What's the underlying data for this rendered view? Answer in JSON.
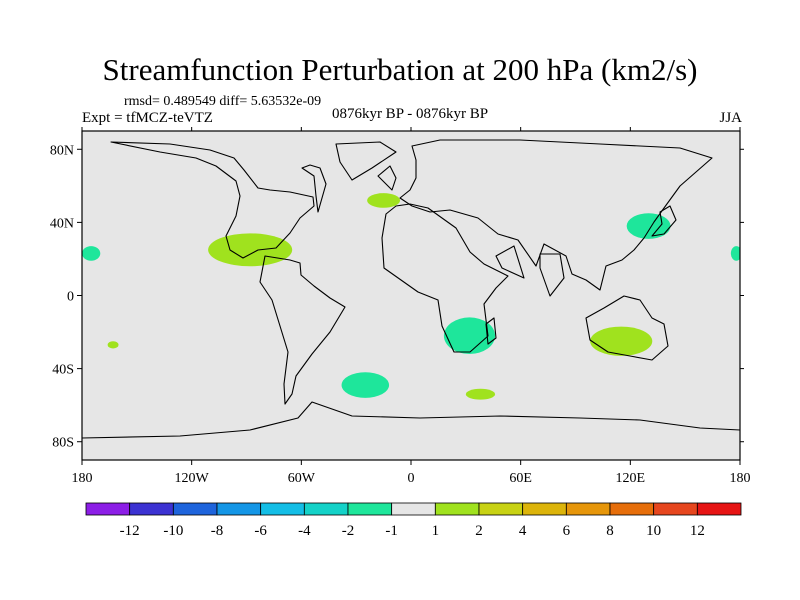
{
  "figure": {
    "title": "Streamfunction Perturbation at 200 hPa (km2/s)",
    "subtitle": "rmsd= 0.489549 diff= 5.63532e-09",
    "experiment": "Expt = tfMCZ-teVTZ",
    "period": "0876kyr BP - 0876kyr BP",
    "season": "JJA"
  },
  "chart_data": {
    "type": "map",
    "title": "Streamfunction Perturbation at 200 hPa (km2/s)",
    "variable": "streamfunction perturbation",
    "units": "km2/s",
    "level": "200 hPa",
    "xlabel": "",
    "ylabel": "",
    "xlim": [
      -180,
      180
    ],
    "ylim": [
      -90,
      90
    ],
    "x_ticks": [
      {
        "value": -180,
        "label": "180"
      },
      {
        "value": -120,
        "label": "120W"
      },
      {
        "value": -60,
        "label": "60W"
      },
      {
        "value": 0,
        "label": "0"
      },
      {
        "value": 60,
        "label": "60E"
      },
      {
        "value": 120,
        "label": "120E"
      },
      {
        "value": 180,
        "label": "180"
      }
    ],
    "y_ticks": [
      {
        "value": 80,
        "label": "80N"
      },
      {
        "value": 40,
        "label": "40N"
      },
      {
        "value": 0,
        "label": "0"
      },
      {
        "value": -40,
        "label": "40S"
      },
      {
        "value": -80,
        "label": "80S"
      }
    ],
    "colorbar": {
      "colors": [
        "#8c1ee6",
        "#3c32d2",
        "#1e64dc",
        "#1496e6",
        "#14bee6",
        "#14d2c8",
        "#1ee69b",
        "#e6e6e6",
        "#a0e21e",
        "#c8d214",
        "#dcb40a",
        "#e6960a",
        "#e66e0a",
        "#e6461e",
        "#e61414"
      ],
      "labels": [
        "-12",
        "-10",
        "-8",
        "-6",
        "-4",
        "-2",
        "-1",
        "1",
        "2",
        "4",
        "6",
        "8",
        "10",
        "12"
      ]
    },
    "anomalies": [
      {
        "name": "Gulf of Mexico / Caribbean",
        "lon": -88,
        "lat": 25,
        "rx": 23,
        "ry": 9,
        "value_class": "1 to 2",
        "color": "#a0e21e"
      },
      {
        "name": "North Atlantic west of Europe",
        "lon": -15,
        "lat": 52,
        "rx": 9,
        "ry": 4,
        "value_class": "1 to 2",
        "color": "#a0e21e"
      },
      {
        "name": "East Asia / Japan",
        "lon": 130,
        "lat": 38,
        "rx": 12,
        "ry": 7,
        "value_class": "-2 to -1",
        "color": "#1ee69b"
      },
      {
        "name": "Central Pacific east edge",
        "lon": -175,
        "lat": 23,
        "rx": 5,
        "ry": 4,
        "value_class": "-2 to -1",
        "color": "#1ee69b"
      },
      {
        "name": "Central Pacific west edge",
        "lon": 178,
        "lat": 23,
        "rx": 3,
        "ry": 4,
        "value_class": "-2 to -1",
        "color": "#1ee69b"
      },
      {
        "name": "Southern Africa",
        "lon": 32,
        "lat": -22,
        "rx": 14,
        "ry": 10,
        "value_class": "-2 to -1",
        "color": "#1ee69b"
      },
      {
        "name": "Australia / Indian Ocean",
        "lon": 115,
        "lat": -25,
        "rx": 17,
        "ry": 8,
        "value_class": "1 to 2",
        "color": "#a0e21e"
      },
      {
        "name": "South Atlantic",
        "lon": -25,
        "lat": -49,
        "rx": 13,
        "ry": 7,
        "value_class": "-2 to -1",
        "color": "#1ee69b"
      },
      {
        "name": "Southern Indian Ocean",
        "lon": 38,
        "lat": -54,
        "rx": 8,
        "ry": 3,
        "value_class": "1 to 2",
        "color": "#a0e21e"
      },
      {
        "name": "South Pacific",
        "lon": -163,
        "lat": -27,
        "rx": 3,
        "ry": 2,
        "value_class": "1 to 2",
        "color": "#a0e21e"
      }
    ]
  }
}
